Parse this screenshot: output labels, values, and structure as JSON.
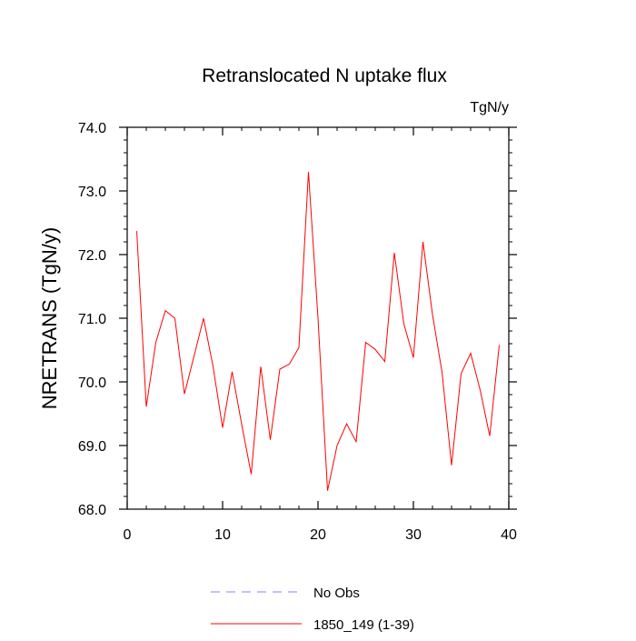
{
  "chart_data": {
    "type": "line",
    "title": "Retranslocated N uptake flux",
    "units_label": "TgN/y",
    "ylabel": "NRETRANS  (TgN/y)",
    "xlabel": "",
    "xlim": [
      0,
      40
    ],
    "ylim": [
      68.0,
      74.0
    ],
    "x_ticks": [
      0,
      10,
      20,
      30,
      40
    ],
    "x_tick_labels": [
      "0",
      "10",
      "20",
      "30",
      "40"
    ],
    "y_ticks": [
      68.0,
      69.0,
      70.0,
      71.0,
      72.0,
      73.0,
      74.0
    ],
    "y_tick_labels": [
      "68.0",
      "69.0",
      "70.0",
      "71.0",
      "72.0",
      "73.0",
      "74.0"
    ],
    "grid": false,
    "series": [
      {
        "name": "1850_149 (1-39)",
        "color": "#ff0000",
        "style": "solid",
        "x": [
          1,
          2,
          3,
          4,
          5,
          6,
          7,
          8,
          9,
          10,
          11,
          12,
          13,
          14,
          15,
          16,
          17,
          18,
          19,
          20,
          21,
          22,
          23,
          24,
          25,
          26,
          27,
          28,
          29,
          30,
          31,
          32,
          33,
          34,
          35,
          36,
          37,
          38,
          39
        ],
        "values": [
          72.37,
          69.61,
          70.62,
          71.12,
          71.0,
          69.81,
          70.4,
          71.0,
          70.24,
          69.28,
          70.16,
          69.33,
          68.55,
          70.24,
          69.09,
          70.2,
          70.28,
          70.54,
          73.3,
          71.0,
          68.29,
          69.0,
          69.34,
          69.06,
          70.62,
          70.51,
          70.32,
          72.03,
          70.91,
          70.38,
          72.2,
          71.06,
          70.15,
          68.69,
          70.13,
          70.45,
          69.87,
          69.15,
          70.58
        ]
      }
    ],
    "legend": {
      "placement": "bottom",
      "entries": [
        {
          "label": "No Obs",
          "color": "#8080ff",
          "style": "dashed"
        },
        {
          "label": "1850_149 (1-39)",
          "color": "#ff0000",
          "style": "solid"
        }
      ]
    }
  }
}
